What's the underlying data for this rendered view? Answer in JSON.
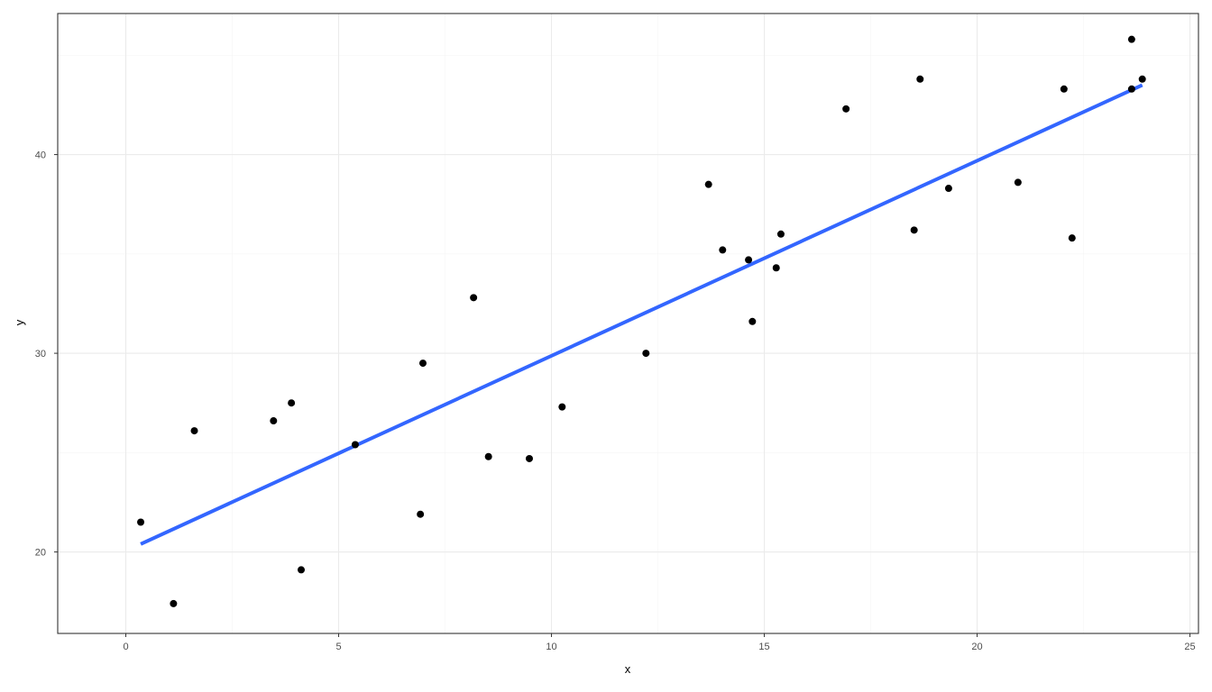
{
  "chart_data": {
    "type": "scatter",
    "title": "",
    "xlabel": "x",
    "ylabel": "y",
    "xlim": [
      -1.6,
      25.2
    ],
    "ylim": [
      15.9,
      47.1
    ],
    "x_ticks": [
      0,
      5,
      10,
      15,
      20,
      25
    ],
    "y_ticks": [
      20,
      30,
      40
    ],
    "grid": true,
    "legend": "none",
    "colors": {
      "points": "#000000",
      "fit_line": "#3366ff",
      "grid_major": "#ebebeb",
      "grid_minor": "#f5f5f5",
      "panel_border": "#333333",
      "tick_text": "#4d4d4d"
    },
    "points": [
      {
        "x": 0.35,
        "y": 21.5
      },
      {
        "x": 1.12,
        "y": 17.4
      },
      {
        "x": 1.61,
        "y": 26.1
      },
      {
        "x": 3.47,
        "y": 26.6
      },
      {
        "x": 3.89,
        "y": 27.5
      },
      {
        "x": 4.12,
        "y": 19.1
      },
      {
        "x": 5.39,
        "y": 25.4
      },
      {
        "x": 6.92,
        "y": 21.9
      },
      {
        "x": 6.98,
        "y": 29.5
      },
      {
        "x": 8.17,
        "y": 32.8
      },
      {
        "x": 8.52,
        "y": 24.8
      },
      {
        "x": 9.48,
        "y": 24.7
      },
      {
        "x": 10.25,
        "y": 27.3
      },
      {
        "x": 12.22,
        "y": 30.0
      },
      {
        "x": 13.69,
        "y": 38.5
      },
      {
        "x": 14.02,
        "y": 35.2
      },
      {
        "x": 14.63,
        "y": 34.7
      },
      {
        "x": 14.72,
        "y": 31.6
      },
      {
        "x": 15.28,
        "y": 34.3
      },
      {
        "x": 15.39,
        "y": 36.0
      },
      {
        "x": 16.92,
        "y": 42.3
      },
      {
        "x": 18.52,
        "y": 36.2
      },
      {
        "x": 18.66,
        "y": 43.8
      },
      {
        "x": 19.33,
        "y": 38.3
      },
      {
        "x": 20.96,
        "y": 38.6
      },
      {
        "x": 22.04,
        "y": 43.3
      },
      {
        "x": 22.23,
        "y": 35.8
      },
      {
        "x": 23.63,
        "y": 45.8
      },
      {
        "x": 23.63,
        "y": 43.3
      },
      {
        "x": 23.88,
        "y": 43.8
      }
    ],
    "fit_line": {
      "x": [
        0.35,
        23.88
      ],
      "y": [
        20.4,
        43.5
      ]
    }
  }
}
